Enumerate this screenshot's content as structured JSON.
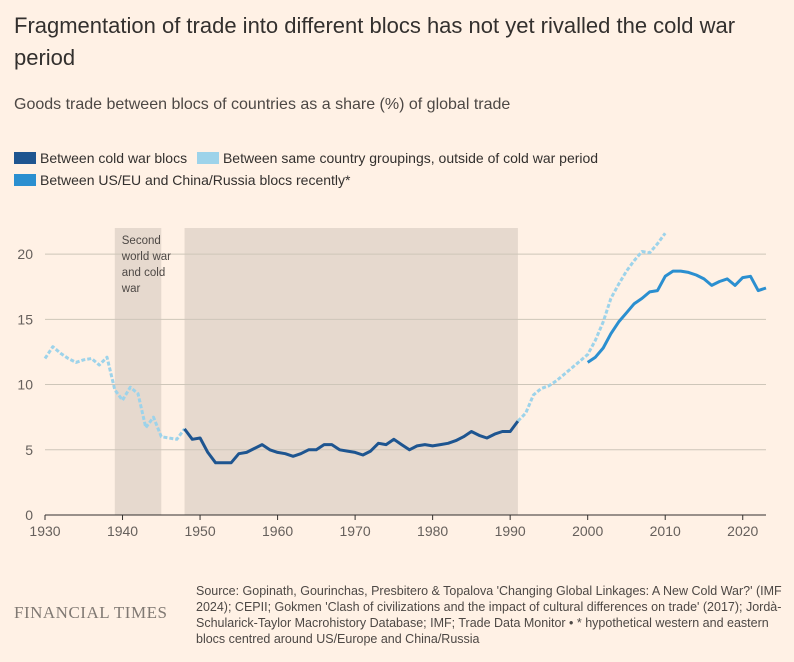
{
  "header": {
    "title": "Fragmentation of trade into different blocs has not yet rivalled the cold war period",
    "subtitle": "Goods trade between blocs of countries as a share (%) of global trade"
  },
  "legend": [
    {
      "label": "Between cold war blocs",
      "color": "#1e5590"
    },
    {
      "label": "Between same country groupings, outside of cold war period",
      "color": "#9dd3ea"
    },
    {
      "label": "Between US/EU and China/Russia blocs recently*",
      "color": "#2b8fd0"
    }
  ],
  "footer": {
    "logo": "FINANCIAL TIMES",
    "source": "Source: Gopinath, Gourinchas, Presbitero & Topalova 'Changing Global Linkages: A New Cold War?' (IMF 2024); CEPII; Gokmen 'Clash of civilizations and the impact of cultural differences on trade' (2017); Jordà-Schularick-Taylor Macrohistory Database; IMF; Trade Data Monitor • * hypothetical western and eastern blocs centred around US/Europe and China/Russia"
  },
  "chart_data": {
    "type": "line",
    "xlim": [
      1930,
      2023
    ],
    "ylim": [
      0,
      22
    ],
    "x_ticks": [
      1930,
      1940,
      1950,
      1960,
      1970,
      1980,
      1990,
      2000,
      2010,
      2020
    ],
    "y_ticks": [
      0,
      5,
      10,
      15,
      20
    ],
    "grid": "horizontal",
    "shaded_periods": [
      {
        "x0": 1939,
        "x1": 1945,
        "label": "Second world war and cold war"
      },
      {
        "x0": 1948,
        "x1": 1991,
        "label": ""
      }
    ],
    "series": [
      {
        "name": "Between same country groupings, outside of cold war period",
        "color": "#9dd3ea",
        "dashed": true,
        "x": [
          1930,
          1931,
          1932,
          1933,
          1934,
          1935,
          1936,
          1937,
          1938,
          1939,
          1940,
          1941,
          1942,
          1943,
          1944,
          1945,
          1946,
          1947,
          1948
        ],
        "y": [
          12.0,
          12.9,
          12.4,
          12.0,
          11.7,
          11.9,
          12.0,
          11.5,
          12.1,
          9.6,
          8.8,
          9.8,
          9.3,
          6.7,
          7.5,
          6.0,
          5.9,
          5.8,
          6.6
        ]
      },
      {
        "name": "Between cold war blocs",
        "color": "#1e5590",
        "dashed": false,
        "x": [
          1948,
          1949,
          1950,
          1951,
          1952,
          1953,
          1954,
          1955,
          1956,
          1957,
          1958,
          1959,
          1960,
          1961,
          1962,
          1963,
          1964,
          1965,
          1966,
          1967,
          1968,
          1969,
          1970,
          1971,
          1972,
          1973,
          1974,
          1975,
          1976,
          1977,
          1978,
          1979,
          1980,
          1981,
          1982,
          1983,
          1984,
          1985,
          1986,
          1987,
          1988,
          1989,
          1990,
          1991
        ],
        "y": [
          6.6,
          5.8,
          5.9,
          4.8,
          4.0,
          4.0,
          4.0,
          4.7,
          4.8,
          5.1,
          5.4,
          5.0,
          4.8,
          4.7,
          4.5,
          4.7,
          5.0,
          5.0,
          5.4,
          5.4,
          5.0,
          4.9,
          4.8,
          4.6,
          4.9,
          5.5,
          5.4,
          5.8,
          5.4,
          5.0,
          5.3,
          5.4,
          5.3,
          5.4,
          5.5,
          5.7,
          6.0,
          6.4,
          6.1,
          5.9,
          6.2,
          6.4,
          6.4,
          7.2
        ]
      },
      {
        "name": "Between same country groupings, outside of cold war period (post 1991)",
        "color": "#9dd3ea",
        "dashed": true,
        "x": [
          1991,
          1992,
          1993,
          1994,
          1995,
          1996,
          1997,
          1998,
          1999,
          2000,
          2001,
          2002,
          2003,
          2004,
          2005,
          2006,
          2007,
          2008,
          2009,
          2010
        ],
        "y": [
          7.2,
          7.8,
          9.2,
          9.7,
          9.9,
          10.3,
          10.8,
          11.3,
          11.8,
          12.3,
          13.4,
          14.8,
          16.6,
          17.7,
          18.7,
          19.5,
          20.2,
          20.1,
          20.8,
          21.6
        ]
      },
      {
        "name": "Between US/EU and China/Russia blocs recently*",
        "color": "#2b8fd0",
        "dashed": false,
        "x": [
          2000,
          2001,
          2002,
          2003,
          2004,
          2005,
          2006,
          2007,
          2008,
          2009,
          2010,
          2011,
          2012,
          2013,
          2014,
          2015,
          2016,
          2017,
          2018,
          2019,
          2020,
          2021,
          2022,
          2023
        ],
        "y": [
          11.7,
          12.1,
          12.8,
          13.9,
          14.8,
          15.5,
          16.2,
          16.6,
          17.1,
          17.2,
          18.3,
          18.7,
          18.7,
          18.6,
          18.4,
          18.1,
          17.6,
          17.9,
          18.1,
          17.6,
          18.2,
          18.3,
          17.2,
          17.4
        ]
      }
    ]
  }
}
